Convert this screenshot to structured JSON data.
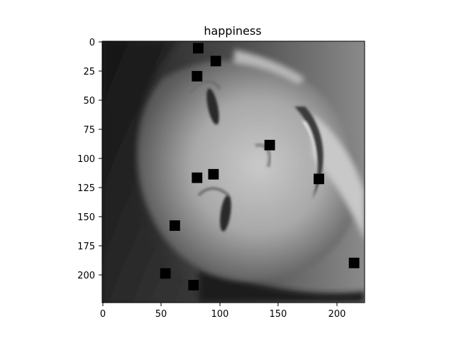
{
  "figure": {
    "title": "happiness",
    "image_size": [
      224,
      224
    ],
    "colormap": "grayscale",
    "x_ticks": [
      "0",
      "50",
      "100",
      "150",
      "200"
    ],
    "y_ticks": [
      "0",
      "25",
      "50",
      "75",
      "100",
      "125",
      "150",
      "175",
      "200"
    ],
    "occlusion_patches": [
      {
        "x": 82,
        "y": 6
      },
      {
        "x": 97,
        "y": 17
      },
      {
        "x": 81,
        "y": 30
      },
      {
        "x": 143,
        "y": 89
      },
      {
        "x": 95,
        "y": 114
      },
      {
        "x": 81,
        "y": 117
      },
      {
        "x": 185,
        "y": 118
      },
      {
        "x": 62,
        "y": 158
      },
      {
        "x": 215,
        "y": 190
      },
      {
        "x": 54,
        "y": 199
      },
      {
        "x": 78,
        "y": 209
      }
    ],
    "patch_color": "#000000"
  }
}
